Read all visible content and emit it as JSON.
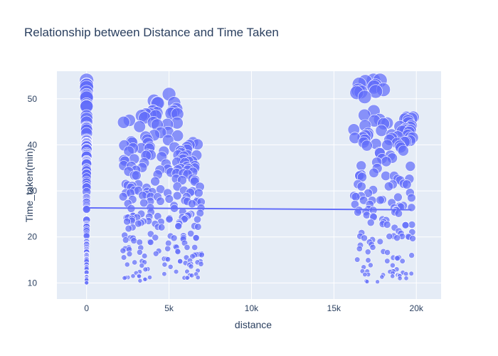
{
  "chart_data": {
    "type": "scatter",
    "title": "Relationship between Distance and Time Taken",
    "xlabel": "distance",
    "ylabel": "Time_taken(min)",
    "xlim": [
      -1800,
      21500
    ],
    "ylim": [
      6.5,
      56
    ],
    "x_ticks": [
      0,
      5000,
      10000,
      15000,
      20000
    ],
    "x_tick_labels": [
      "0",
      "5k",
      "10k",
      "15k",
      "20k"
    ],
    "y_ticks": [
      10,
      20,
      30,
      40,
      50
    ],
    "y_tick_labels": [
      "10",
      "20",
      "30",
      "40",
      "50"
    ],
    "grid": true,
    "marker_size_encodes": "Time_taken(min)",
    "colors": {
      "marker": "#636efa",
      "trendline": "#636efa",
      "plot_bg": "#e5ecf6",
      "grid": "#ffffff",
      "text": "#2a3f5f"
    },
    "series": [
      {
        "marker": "bubble",
        "clusters": [
          {
            "x": [
              0,
              0
            ],
            "y": [
              10,
              54
            ]
          },
          {
            "x": [
              2200,
              3700
            ],
            "y": [
              10,
              47
            ]
          },
          {
            "x": [
              3700,
              5600
            ],
            "y": [
              10,
              51
            ]
          },
          {
            "x": [
              5600,
              7000
            ],
            "y": [
              11,
              42
            ]
          },
          {
            "x": [
              16200,
              18200
            ],
            "y": [
              10,
              54
            ]
          },
          {
            "x": [
              18200,
              19800
            ],
            "y": [
              11,
              46
            ]
          }
        ]
      }
    ],
    "trendline": {
      "x": [
        0,
        19700
      ],
      "y": [
        26.3,
        25.9
      ]
    }
  }
}
